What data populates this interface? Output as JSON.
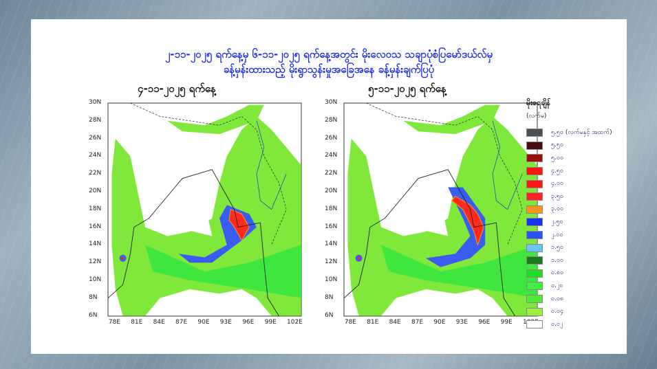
{
  "header": {
    "title_line1": "၂-၁၁-၂၀၂၅ ရက်နေ့မှ ၆-၁၁-၂၀၂၅ ရက်နေ့အတွင်း မိုးလေဝသ သချာပုံစံပြမော်ဒယ်လ်မှ",
    "title_line2": "ခန့်မှန်းထားသည့် မိုးရွာသွန်းမှုအခြေအနေ ခန့်မှန်းချက်ပြပုံ"
  },
  "maps": [
    {
      "date": "၄-၁၁-၂၀၂၅ ရက်နေ့"
    },
    {
      "date": "၅-၁၁-၂၀၂၅ ရက်နေ့"
    }
  ],
  "axes": {
    "y_ticks": [
      "30N",
      "28N",
      "26N",
      "24N",
      "22N",
      "20N",
      "18N",
      "16N",
      "14N",
      "12N",
      "10N",
      "8N",
      "6N"
    ],
    "x_ticks": [
      "78E",
      "81E",
      "84E",
      "87E",
      "90E",
      "93E",
      "96E",
      "99E",
      "102E"
    ]
  },
  "legend": {
    "title": "မိုးရေချိန်",
    "unit": "(လက်မ)",
    "items": [
      {
        "label": "၅.၅၀ (လက်မနှင့် အထက်)",
        "color": "#4a5256"
      },
      {
        "label": "၅.၅၀",
        "color": "#4a0c0c"
      },
      {
        "label": "၅.၀၀",
        "color": "#9a0e0e"
      },
      {
        "label": "၄.၅၀",
        "color": "#ff1414"
      },
      {
        "label": "၄.၀၀",
        "color": "#ff1414"
      },
      {
        "label": "၃.၅၀",
        "color": "#ff2222"
      },
      {
        "label": "၃.၀၀",
        "color": "#f7941d"
      },
      {
        "label": "၂.၅၀",
        "color": "#1432f0"
      },
      {
        "label": "၂.၀၀",
        "color": "#2a52f5"
      },
      {
        "label": "၁.၅၀",
        "color": "#6cc4f5"
      },
      {
        "label": "၁.၀၀",
        "color": "#1d7a1d"
      },
      {
        "label": "၀.၈၀",
        "color": "#22dd22"
      },
      {
        "label": "၀.၂၀",
        "color": "#3ef03e"
      },
      {
        "label": "၀.၀၈",
        "color": "#52ea3a"
      },
      {
        "label": "၀.၀၄",
        "color": "#9af03a"
      },
      {
        "label": "၀.၀၂",
        "color": "#ffffff"
      }
    ]
  }
}
